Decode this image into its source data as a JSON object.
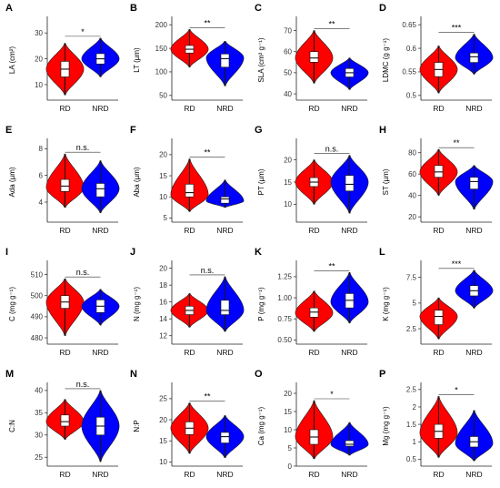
{
  "figure": {
    "colors": {
      "RD": "#ff0000",
      "NRD": "#0000ff"
    }
  },
  "chart_data": [
    {
      "panel": "A",
      "type": "violin",
      "ylabel": "LA (cm²)",
      "ticks": [
        10,
        20,
        30
      ],
      "ylim": [
        4,
        35
      ],
      "categories": [
        "RD",
        "NRD"
      ],
      "series": [
        {
          "name": "RD",
          "min": 6,
          "q1": 13,
          "median": 16,
          "q3": 19,
          "max": 26,
          "mode": 16
        },
        {
          "name": "NRD",
          "min": 13,
          "q1": 18,
          "median": 20,
          "q3": 22,
          "max": 28,
          "mode": 20
        }
      ],
      "significance": "*"
    },
    {
      "panel": "B",
      "type": "violin",
      "ylabel": "LT (µm)",
      "ticks": [
        50,
        100,
        150,
        200
      ],
      "ylim": [
        40,
        210
      ],
      "categories": [
        "RD",
        "NRD"
      ],
      "series": [
        {
          "name": "RD",
          "min": 110,
          "q1": 140,
          "median": 148,
          "q3": 156,
          "max": 190,
          "mode": 148
        },
        {
          "name": "NRD",
          "min": 70,
          "q1": 110,
          "median": 128,
          "q3": 138,
          "max": 165,
          "mode": 130
        }
      ],
      "significance": "**"
    },
    {
      "panel": "C",
      "type": "violin",
      "ylabel": "SLA (cm² g⁻¹)",
      "ticks": [
        40,
        50,
        60,
        70
      ],
      "ylim": [
        37,
        75
      ],
      "categories": [
        "RD",
        "NRD"
      ],
      "series": [
        {
          "name": "RD",
          "min": 45,
          "q1": 55,
          "median": 57,
          "q3": 60,
          "max": 70,
          "mode": 57
        },
        {
          "name": "NRD",
          "min": 42,
          "q1": 48,
          "median": 50,
          "q3": 52,
          "max": 57,
          "mode": 50
        }
      ],
      "significance": "**"
    },
    {
      "panel": "D",
      "type": "violin",
      "ylabel": "LDMC (g g⁻¹)",
      "ticks": [
        0.5,
        0.55,
        0.6,
        0.65
      ],
      "ylim": [
        0.49,
        0.66
      ],
      "categories": [
        "RD",
        "NRD"
      ],
      "series": [
        {
          "name": "RD",
          "min": 0.505,
          "q1": 0.54,
          "median": 0.555,
          "q3": 0.57,
          "max": 0.605,
          "mode": 0.555
        },
        {
          "name": "NRD",
          "min": 0.545,
          "q1": 0.57,
          "median": 0.582,
          "q3": 0.59,
          "max": 0.63,
          "mode": 0.58
        }
      ],
      "significance": "***"
    },
    {
      "panel": "E",
      "type": "violin",
      "ylabel": "Ada (µm)",
      "ticks": [
        4,
        6,
        8
      ],
      "ylim": [
        2.5,
        8.5
      ],
      "categories": [
        "RD",
        "NRD"
      ],
      "series": [
        {
          "name": "RD",
          "min": 3.6,
          "q1": 4.8,
          "median": 5.2,
          "q3": 5.7,
          "max": 7.6,
          "mode": 5.1
        },
        {
          "name": "NRD",
          "min": 3.2,
          "q1": 4.4,
          "median": 5.0,
          "q3": 5.4,
          "max": 7.1,
          "mode": 5.0
        }
      ],
      "significance": "n.s."
    },
    {
      "panel": "F",
      "type": "violin",
      "ylabel": "Aba (µm)",
      "ticks": [
        5,
        10,
        15,
        20
      ],
      "ylim": [
        4,
        23
      ],
      "categories": [
        "RD",
        "NRD"
      ],
      "series": [
        {
          "name": "RD",
          "min": 6.5,
          "q1": 10,
          "median": 11,
          "q3": 13,
          "max": 19,
          "mode": 10.5
        },
        {
          "name": "NRD",
          "min": 7.5,
          "q1": 8.5,
          "median": 9.5,
          "q3": 10,
          "max": 14,
          "mode": 9
        }
      ],
      "significance": "**"
    },
    {
      "panel": "G",
      "type": "violin",
      "ylabel": "PT (µm)",
      "ticks": [
        10,
        15,
        20
      ],
      "ylim": [
        6,
        24
      ],
      "categories": [
        "RD",
        "NRD"
      ],
      "series": [
        {
          "name": "RD",
          "min": 10,
          "q1": 14,
          "median": 15,
          "q3": 16,
          "max": 20,
          "mode": 15
        },
        {
          "name": "NRD",
          "min": 8,
          "q1": 13,
          "median": 14.5,
          "q3": 16.5,
          "max": 21,
          "mode": 15
        }
      ],
      "significance": "n.s."
    },
    {
      "panel": "H",
      "type": "violin",
      "ylabel": "ST (µm)",
      "ticks": [
        20,
        40,
        60,
        80
      ],
      "ylim": [
        15,
        90
      ],
      "categories": [
        "RD",
        "NRD"
      ],
      "series": [
        {
          "name": "RD",
          "min": 40,
          "q1": 57,
          "median": 62,
          "q3": 68,
          "max": 83,
          "mode": 62
        },
        {
          "name": "NRD",
          "min": 27,
          "q1": 46,
          "median": 53,
          "q3": 57,
          "max": 68,
          "mode": 53
        }
      ],
      "significance": "**"
    },
    {
      "panel": "I",
      "type": "violin",
      "ylabel": "C (mg g⁻¹)",
      "ticks": [
        480,
        490,
        500,
        510
      ],
      "ylim": [
        477,
        515
      ],
      "categories": [
        "RD",
        "NRD"
      ],
      "series": [
        {
          "name": "RD",
          "min": 481,
          "q1": 494,
          "median": 497,
          "q3": 500,
          "max": 508,
          "mode": 497
        },
        {
          "name": "NRD",
          "min": 486,
          "q1": 492,
          "median": 495,
          "q3": 498,
          "max": 503,
          "mode": 495
        }
      ],
      "significance": "n.s."
    },
    {
      "panel": "J",
      "type": "violin",
      "ylabel": "N (mg g⁻¹)",
      "ticks": [
        12,
        14,
        16,
        18,
        20
      ],
      "ylim": [
        11,
        20.5
      ],
      "categories": [
        "RD",
        "NRD"
      ],
      "series": [
        {
          "name": "RD",
          "min": 13,
          "q1": 14.5,
          "median": 15,
          "q3": 15.5,
          "max": 17,
          "mode": 15
        },
        {
          "name": "NRD",
          "min": 12.5,
          "q1": 14.5,
          "median": 15,
          "q3": 16.2,
          "max": 19,
          "mode": 15
        }
      ],
      "significance": "n.s."
    },
    {
      "panel": "K",
      "type": "violin",
      "ylabel": "P (mg g⁻¹)",
      "ticks": [
        0.5,
        0.75,
        1.0,
        1.25
      ],
      "tick_labels": [
        "0.50",
        "0.75",
        "1.00",
        "1.25"
      ],
      "ylim": [
        0.45,
        1.4
      ],
      "categories": [
        "RD",
        "NRD"
      ],
      "series": [
        {
          "name": "RD",
          "min": 0.6,
          "q1": 0.77,
          "median": 0.83,
          "q3": 0.88,
          "max": 1.08,
          "mode": 0.82
        },
        {
          "name": "NRD",
          "min": 0.7,
          "q1": 0.88,
          "median": 0.97,
          "q3": 1.05,
          "max": 1.3,
          "mode": 0.95
        }
      ],
      "significance": "**"
    },
    {
      "panel": "L",
      "type": "violin",
      "ylabel": "K (mg g⁻¹)",
      "ticks": [
        2.5,
        5.0,
        7.5
      ],
      "ylim": [
        1,
        8.8
      ],
      "categories": [
        "RD",
        "NRD"
      ],
      "series": [
        {
          "name": "RD",
          "min": 1.5,
          "q1": 2.9,
          "median": 3.7,
          "q3": 4.3,
          "max": 5.5,
          "mode": 3.7
        },
        {
          "name": "NRD",
          "min": 4.5,
          "q1": 5.7,
          "median": 6.2,
          "q3": 6.7,
          "max": 8.2,
          "mode": 6.2
        }
      ],
      "significance": "***"
    },
    {
      "panel": "M",
      "type": "violin",
      "ylabel": "C:N",
      "ticks": [
        25,
        30,
        35,
        40
      ],
      "ylim": [
        23,
        41
      ],
      "categories": [
        "RD",
        "NRD"
      ],
      "series": [
        {
          "name": "RD",
          "min": 29,
          "q1": 32,
          "median": 33,
          "q3": 34.5,
          "max": 38,
          "mode": 33
        },
        {
          "name": "NRD",
          "min": 24,
          "q1": 30,
          "median": 32,
          "q3": 34,
          "max": 40,
          "mode": 32
        }
      ],
      "significance": "n.s."
    },
    {
      "panel": "N",
      "type": "violin",
      "ylabel": "N:P",
      "ticks": [
        10,
        15,
        20,
        25
      ],
      "ylim": [
        9,
        28
      ],
      "categories": [
        "RD",
        "NRD"
      ],
      "series": [
        {
          "name": "RD",
          "min": 12,
          "q1": 16.5,
          "median": 18,
          "q3": 19.5,
          "max": 24,
          "mode": 18
        },
        {
          "name": "NRD",
          "min": 11,
          "q1": 14.5,
          "median": 16,
          "q3": 17,
          "max": 21,
          "mode": 16
        }
      ],
      "significance": "**"
    },
    {
      "panel": "O",
      "type": "violin",
      "ylabel": "Ca (mg g⁻¹)",
      "ticks": [
        0,
        5,
        10,
        15,
        20
      ],
      "ylim": [
        0,
        22
      ],
      "categories": [
        "RD",
        "NRD"
      ],
      "series": [
        {
          "name": "RD",
          "min": 2,
          "q1": 6,
          "median": 8,
          "q3": 10,
          "max": 18,
          "mode": 8
        },
        {
          "name": "NRD",
          "min": 3,
          "q1": 5.5,
          "median": 6,
          "q3": 7,
          "max": 12,
          "mode": 6
        }
      ],
      "significance": "*"
    },
    {
      "panel": "P",
      "type": "violin",
      "ylabel": "Mg (mg g⁻¹)",
      "ticks": [
        0.5,
        1.0,
        1.5,
        2.0,
        2.5
      ],
      "ylim": [
        0.3,
        2.6
      ],
      "categories": [
        "RD",
        "NRD"
      ],
      "series": [
        {
          "name": "RD",
          "min": 0.55,
          "q1": 1.1,
          "median": 1.3,
          "q3": 1.5,
          "max": 2.3,
          "mode": 1.25
        },
        {
          "name": "NRD",
          "min": 0.45,
          "q1": 0.85,
          "median": 1.0,
          "q3": 1.15,
          "max": 1.9,
          "mode": 0.95
        }
      ],
      "significance": "*"
    }
  ]
}
